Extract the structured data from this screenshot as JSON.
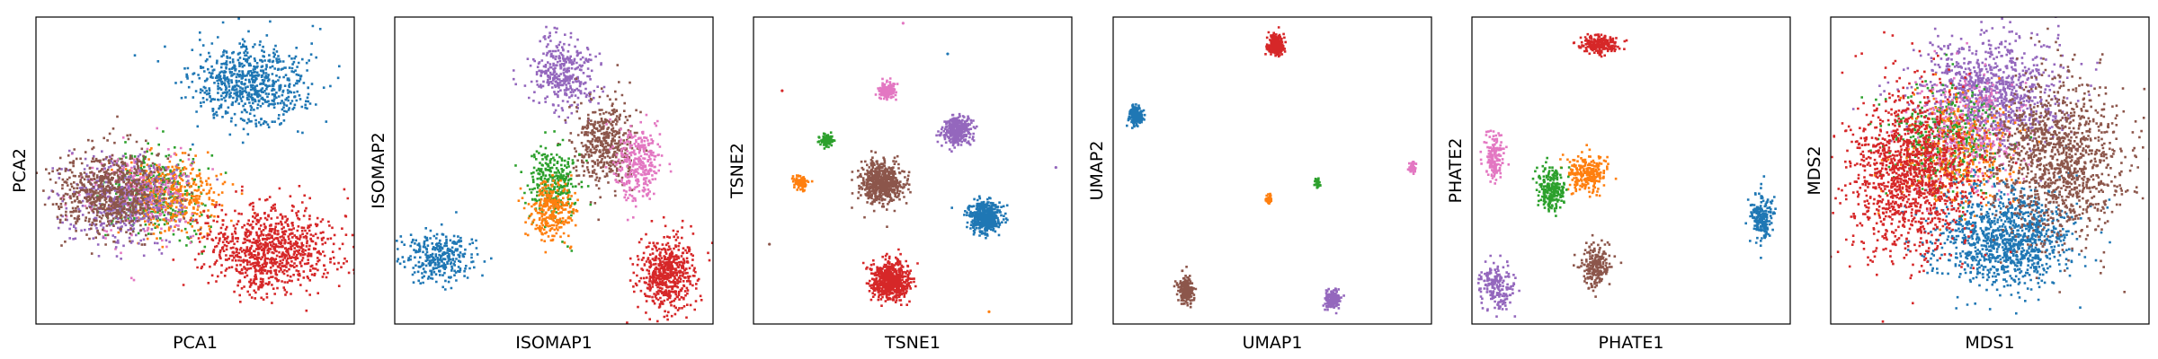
{
  "colors": {
    "blue": "#1f77b4",
    "orange": "#ff7f0e",
    "green": "#2ca02c",
    "red": "#d62728",
    "purple": "#9467bd",
    "brown": "#8c564b",
    "pink": "#e377c2"
  },
  "chart_data": [
    {
      "type": "scatter",
      "xlabel": "PCA1",
      "ylabel": "PCA2",
      "xlim": [
        0,
        1
      ],
      "ylim": [
        0,
        1
      ],
      "grid": false,
      "ticks": false,
      "clusters": [
        {
          "color": "blue",
          "cx": 0.67,
          "cy": 0.78,
          "sx": 0.09,
          "sy": 0.065,
          "n": 700
        },
        {
          "color": "green",
          "cx": 0.38,
          "cy": 0.43,
          "sx": 0.07,
          "sy": 0.07,
          "n": 380
        },
        {
          "color": "orange",
          "cx": 0.42,
          "cy": 0.42,
          "sx": 0.08,
          "sy": 0.065,
          "n": 420
        },
        {
          "color": "pink",
          "cx": 0.33,
          "cy": 0.43,
          "sx": 0.08,
          "sy": 0.07,
          "n": 300
        },
        {
          "color": "purple",
          "cx": 0.27,
          "cy": 0.4,
          "sx": 0.09,
          "sy": 0.07,
          "n": 420
        },
        {
          "color": "brown",
          "cx": 0.23,
          "cy": 0.43,
          "sx": 0.085,
          "sy": 0.065,
          "n": 700
        },
        {
          "color": "red",
          "cx": 0.74,
          "cy": 0.24,
          "sx": 0.1,
          "sy": 0.07,
          "n": 900
        }
      ]
    },
    {
      "type": "scatter",
      "xlabel": "ISOMAP1",
      "ylabel": "ISOMAP2",
      "xlim": [
        0,
        1
      ],
      "ylim": [
        0,
        1
      ],
      "grid": false,
      "ticks": false,
      "clusters": [
        {
          "color": "purple",
          "cx": 0.53,
          "cy": 0.82,
          "sx": 0.05,
          "sy": 0.06,
          "n": 350
        },
        {
          "color": "brown",
          "cx": 0.66,
          "cy": 0.59,
          "sx": 0.05,
          "sy": 0.07,
          "n": 450
        },
        {
          "color": "pink",
          "cx": 0.76,
          "cy": 0.52,
          "sx": 0.035,
          "sy": 0.06,
          "n": 300
        },
        {
          "color": "green",
          "cx": 0.5,
          "cy": 0.46,
          "sx": 0.04,
          "sy": 0.06,
          "n": 300
        },
        {
          "color": "orange",
          "cx": 0.49,
          "cy": 0.37,
          "sx": 0.035,
          "sy": 0.05,
          "n": 280
        },
        {
          "color": "blue",
          "cx": 0.14,
          "cy": 0.22,
          "sx": 0.06,
          "sy": 0.04,
          "n": 320
        },
        {
          "color": "red",
          "cx": 0.85,
          "cy": 0.16,
          "sx": 0.045,
          "sy": 0.06,
          "n": 550
        }
      ]
    },
    {
      "type": "scatter",
      "xlabel": "TSNE1",
      "ylabel": "TSNE2",
      "xlim": [
        0,
        1
      ],
      "ylim": [
        0,
        1
      ],
      "grid": false,
      "ticks": false,
      "clusters": [
        {
          "color": "pink",
          "cx": 0.42,
          "cy": 0.76,
          "sx": 0.013,
          "sy": 0.013,
          "n": 150
        },
        {
          "color": "purple",
          "cx": 0.64,
          "cy": 0.63,
          "sx": 0.022,
          "sy": 0.022,
          "n": 350
        },
        {
          "color": "green",
          "cx": 0.23,
          "cy": 0.6,
          "sx": 0.009,
          "sy": 0.011,
          "n": 80
        },
        {
          "color": "orange",
          "cx": 0.15,
          "cy": 0.46,
          "sx": 0.011,
          "sy": 0.012,
          "n": 90
        },
        {
          "color": "brown",
          "cx": 0.4,
          "cy": 0.46,
          "sx": 0.032,
          "sy": 0.032,
          "n": 600
        },
        {
          "color": "blue",
          "cx": 0.73,
          "cy": 0.35,
          "sx": 0.025,
          "sy": 0.025,
          "n": 450
        },
        {
          "color": "red",
          "cx": 0.43,
          "cy": 0.14,
          "sx": 0.03,
          "sy": 0.03,
          "n": 650
        }
      ],
      "outliers": [
        {
          "color": "pink",
          "x": 0.47,
          "y": 0.98
        },
        {
          "color": "blue",
          "x": 0.61,
          "y": 0.88
        },
        {
          "color": "red",
          "x": 0.09,
          "y": 0.76
        },
        {
          "color": "purple",
          "x": 0.95,
          "y": 0.51
        },
        {
          "color": "brown",
          "x": 0.05,
          "y": 0.26
        },
        {
          "color": "orange",
          "x": 0.74,
          "y": 0.04
        }
      ]
    },
    {
      "type": "scatter",
      "xlabel": "UMAP1",
      "ylabel": "UMAP2",
      "xlim": [
        0,
        1
      ],
      "ylim": [
        0,
        1
      ],
      "grid": false,
      "ticks": false,
      "clusters": [
        {
          "color": "red",
          "cx": 0.51,
          "cy": 0.91,
          "sx": 0.012,
          "sy": 0.017,
          "n": 250
        },
        {
          "color": "blue",
          "cx": 0.07,
          "cy": 0.68,
          "sx": 0.011,
          "sy": 0.015,
          "n": 180
        },
        {
          "color": "pink",
          "cx": 0.94,
          "cy": 0.51,
          "sx": 0.006,
          "sy": 0.009,
          "n": 60
        },
        {
          "color": "green",
          "cx": 0.64,
          "cy": 0.46,
          "sx": 0.004,
          "sy": 0.007,
          "n": 40
        },
        {
          "color": "orange",
          "cx": 0.49,
          "cy": 0.41,
          "sx": 0.005,
          "sy": 0.008,
          "n": 40
        },
        {
          "color": "brown",
          "cx": 0.23,
          "cy": 0.11,
          "sx": 0.012,
          "sy": 0.02,
          "n": 220
        },
        {
          "color": "purple",
          "cx": 0.69,
          "cy": 0.08,
          "sx": 0.011,
          "sy": 0.014,
          "n": 160
        }
      ]
    },
    {
      "type": "scatter",
      "xlabel": "PHATE1",
      "ylabel": "PHATE2",
      "xlim": [
        0,
        1
      ],
      "ylim": [
        0,
        1
      ],
      "grid": false,
      "ticks": false,
      "clusters": [
        {
          "color": "red",
          "cx": 0.4,
          "cy": 0.91,
          "sx": 0.03,
          "sy": 0.015,
          "n": 220
        },
        {
          "color": "pink",
          "cx": 0.07,
          "cy": 0.55,
          "sx": 0.015,
          "sy": 0.04,
          "n": 160
        },
        {
          "color": "orange",
          "cx": 0.36,
          "cy": 0.49,
          "sx": 0.03,
          "sy": 0.03,
          "n": 260
        },
        {
          "color": "green",
          "cx": 0.25,
          "cy": 0.44,
          "sx": 0.02,
          "sy": 0.035,
          "n": 230
        },
        {
          "color": "blue",
          "cx": 0.91,
          "cy": 0.35,
          "sx": 0.018,
          "sy": 0.035,
          "n": 200
        },
        {
          "color": "brown",
          "cx": 0.39,
          "cy": 0.19,
          "sx": 0.025,
          "sy": 0.035,
          "n": 230
        },
        {
          "color": "purple",
          "cx": 0.08,
          "cy": 0.12,
          "sx": 0.025,
          "sy": 0.04,
          "n": 200
        }
      ]
    },
    {
      "type": "scatter",
      "xlabel": "MDS1",
      "ylabel": "MDS2",
      "xlim": [
        0,
        1
      ],
      "ylim": [
        0,
        1
      ],
      "grid": false,
      "ticks": false,
      "clusters": [
        {
          "color": "purple",
          "cx": 0.5,
          "cy": 0.75,
          "sx": 0.11,
          "sy": 0.09,
          "n": 1000
        },
        {
          "color": "green",
          "cx": 0.36,
          "cy": 0.6,
          "sx": 0.09,
          "sy": 0.09,
          "n": 400
        },
        {
          "color": "orange",
          "cx": 0.4,
          "cy": 0.56,
          "sx": 0.09,
          "sy": 0.09,
          "n": 400
        },
        {
          "color": "pink",
          "cx": 0.42,
          "cy": 0.62,
          "sx": 0.1,
          "sy": 0.1,
          "n": 300
        },
        {
          "color": "blue",
          "cx": 0.55,
          "cy": 0.28,
          "sx": 0.11,
          "sy": 0.08,
          "n": 1100
        },
        {
          "color": "brown",
          "cx": 0.72,
          "cy": 0.53,
          "sx": 0.1,
          "sy": 0.13,
          "n": 1200
        },
        {
          "color": "red",
          "cx": 0.25,
          "cy": 0.5,
          "sx": 0.1,
          "sy": 0.14,
          "n": 1300
        }
      ]
    }
  ]
}
